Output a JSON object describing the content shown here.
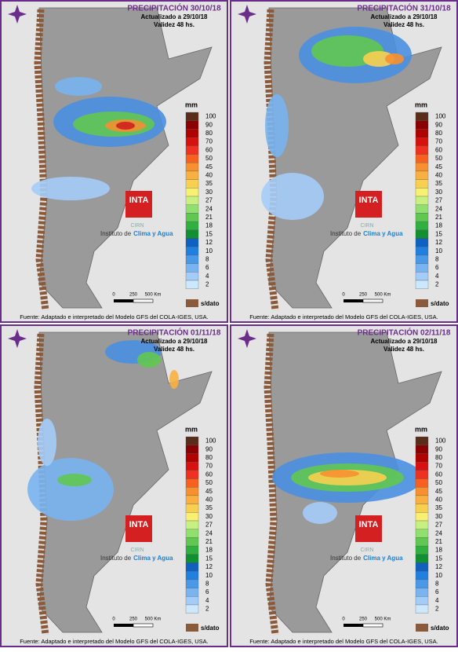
{
  "panels": [
    {
      "title": "PRECIPITACIÓN 30/10/18",
      "updated": "Actualizado a 29/10/18",
      "validity": "Validez 48 hs."
    },
    {
      "title": "PRECIPITACIÓN 31/10/18",
      "updated": "Actualizado a 29/10/18",
      "validity": "Validez 48 hs."
    },
    {
      "title": "PRECIPITACIÓN 01/11/18",
      "updated": "Actualizado a 29/10/18",
      "validity": "Validez 48 hs."
    },
    {
      "title": "PRECIPITACIÓN 02/11/18",
      "updated": "Actualizado a 29/10/18",
      "validity": "Validez 48 hs."
    }
  ],
  "legend": {
    "unit": "mm",
    "no_data": "s/dato",
    "items": [
      {
        "label": 100,
        "color": "#5a2d1a"
      },
      {
        "label": 90,
        "color": "#8b0000"
      },
      {
        "label": 80,
        "color": "#b00000"
      },
      {
        "label": 70,
        "color": "#d81010"
      },
      {
        "label": 60,
        "color": "#f03020"
      },
      {
        "label": 50,
        "color": "#f86020"
      },
      {
        "label": 45,
        "color": "#f89030"
      },
      {
        "label": 40,
        "color": "#f8b040"
      },
      {
        "label": 35,
        "color": "#f8d050"
      },
      {
        "label": 30,
        "color": "#f8f070"
      },
      {
        "label": 27,
        "color": "#c8f080"
      },
      {
        "label": 24,
        "color": "#90e070"
      },
      {
        "label": 21,
        "color": "#60c850"
      },
      {
        "label": 18,
        "color": "#30b040"
      },
      {
        "label": 15,
        "color": "#109030"
      },
      {
        "label": 12,
        "color": "#1060c0"
      },
      {
        "label": 10,
        "color": "#2080e0"
      },
      {
        "label": 8,
        "color": "#4a98e8"
      },
      {
        "label": 6,
        "color": "#78b4f0"
      },
      {
        "label": 4,
        "color": "#a4ccf8"
      },
      {
        "label": 2,
        "color": "#cce8fc"
      }
    ]
  },
  "logo": {
    "name": "INTA",
    "sub": "CIRN",
    "institute": "Instituto de",
    "institute_highlight": "Clima y Agua"
  },
  "scale": {
    "ticks": [
      0,
      250
    ],
    "end": "500 Km"
  },
  "source": "Fuente: Adaptado e interpretado del Modelo GFS del COLA-IGES, USA."
}
